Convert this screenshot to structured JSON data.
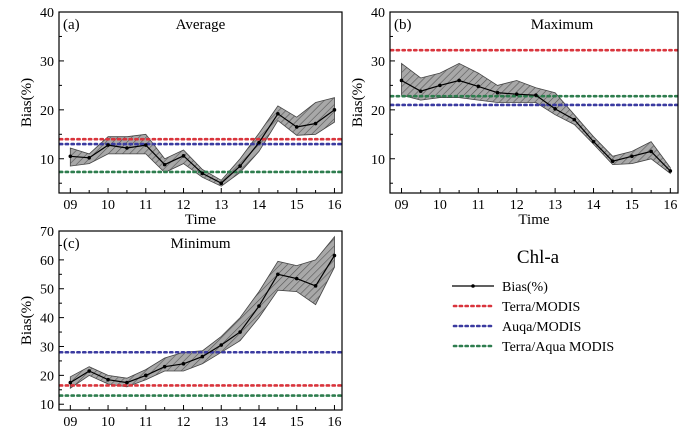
{
  "legend": {
    "title": "Chl-a",
    "entries": [
      {
        "key": "bias",
        "label": "Bias(%)",
        "color": "#000000",
        "style": "line-marker"
      },
      {
        "key": "terra",
        "label": "Terra/MODIS",
        "color": "#d9343c",
        "style": "dotted"
      },
      {
        "key": "aqua",
        "label": "Auqa/MODIS",
        "color": "#3a3aa0",
        "style": "dotted"
      },
      {
        "key": "terra_aqua",
        "label": "Terra/Aqua MODIS",
        "color": "#2e7d4e",
        "style": "dotted"
      }
    ]
  },
  "chart_data": [
    {
      "type": "line",
      "panel_label": "(a)",
      "title": "Average",
      "xlabel": "Time",
      "ylabel": "Bias(%)",
      "x_tick_labels": [
        "09",
        "10",
        "11",
        "12",
        "13",
        "14",
        "15",
        "16"
      ],
      "x_ticks": [
        9,
        10,
        11,
        12,
        13,
        14,
        15,
        16
      ],
      "y_ticks": [
        10,
        20,
        30,
        40
      ],
      "xlim": [
        8.7,
        16.2
      ],
      "ylim": [
        3,
        40
      ],
      "series": [
        {
          "key": "bias",
          "x": [
            9,
            9.5,
            10,
            10.5,
            11,
            11.5,
            12,
            12.5,
            13,
            13.5,
            14,
            14.5,
            15,
            15.5,
            16
          ],
          "y": [
            10.5,
            10.2,
            12.8,
            12.2,
            12.8,
            8.8,
            10.6,
            7.0,
            5.0,
            8.5,
            13.3,
            19.2,
            16.5,
            17.2,
            20.0
          ],
          "upper": [
            12.2,
            11.0,
            14.5,
            14.5,
            15.0,
            10.0,
            11.8,
            7.8,
            5.6,
            10.0,
            15.2,
            20.8,
            18.5,
            21.5,
            22.5
          ],
          "lower": [
            8.5,
            9.0,
            11.0,
            11.0,
            11.0,
            7.2,
            9.0,
            6.2,
            4.4,
            7.2,
            11.5,
            17.8,
            14.8,
            15.0,
            17.5
          ]
        },
        {
          "key": "terra",
          "value": 14.0
        },
        {
          "key": "aqua",
          "value": 13.0
        },
        {
          "key": "terra_aqua",
          "value": 7.3
        }
      ]
    },
    {
      "type": "line",
      "panel_label": "(b)",
      "title": "Maximum",
      "xlabel": "Time",
      "ylabel": "Bias(%)",
      "x_tick_labels": [
        "09",
        "10",
        "11",
        "12",
        "13",
        "14",
        "15",
        "16"
      ],
      "x_ticks": [
        9,
        10,
        11,
        12,
        13,
        14,
        15,
        16
      ],
      "y_ticks": [
        10,
        20,
        30,
        40
      ],
      "xlim": [
        8.7,
        16.2
      ],
      "ylim": [
        3,
        40
      ],
      "series": [
        {
          "key": "bias",
          "x": [
            9,
            9.5,
            10,
            10.5,
            11,
            11.5,
            12,
            12.5,
            13,
            13.5,
            14,
            14.5,
            15,
            15.5,
            16
          ],
          "y": [
            26.0,
            23.8,
            25.0,
            26.0,
            24.8,
            23.5,
            23.2,
            23.0,
            20.2,
            18.0,
            13.5,
            9.5,
            10.5,
            11.5,
            7.5
          ],
          "upper": [
            29.5,
            26.5,
            27.5,
            29.5,
            27.5,
            25.0,
            26.0,
            24.5,
            23.5,
            19.0,
            14.5,
            10.5,
            11.5,
            13.5,
            8.2
          ],
          "lower": [
            23.0,
            22.0,
            22.5,
            22.5,
            22.0,
            21.5,
            21.5,
            21.5,
            19.0,
            17.0,
            13.0,
            8.8,
            9.0,
            10.0,
            7.0
          ]
        },
        {
          "key": "terra",
          "value": 32.2
        },
        {
          "key": "aqua",
          "value": 21.0
        },
        {
          "key": "terra_aqua",
          "value": 22.8
        }
      ]
    },
    {
      "type": "line",
      "panel_label": "(c)",
      "title": "Minimum",
      "xlabel": "Time",
      "ylabel": "Bias(%)",
      "x_tick_labels": [
        "09",
        "10",
        "11",
        "12",
        "13",
        "14",
        "15",
        "16"
      ],
      "x_ticks": [
        9,
        10,
        11,
        12,
        13,
        14,
        15,
        16
      ],
      "y_ticks": [
        10,
        20,
        30,
        40,
        50,
        60,
        70
      ],
      "xlim": [
        8.7,
        16.2
      ],
      "ylim": [
        8,
        70
      ],
      "series": [
        {
          "key": "bias",
          "x": [
            9,
            9.5,
            10,
            10.5,
            11,
            11.5,
            12,
            12.5,
            13,
            13.5,
            14,
            14.5,
            15,
            15.5,
            16
          ],
          "y": [
            17.5,
            21.5,
            18.5,
            17.5,
            20.0,
            23.0,
            24.0,
            26.5,
            30.5,
            35.0,
            44.0,
            55.0,
            53.5,
            51.0,
            61.5
          ],
          "upper": [
            19.5,
            23.0,
            20.0,
            19.0,
            22.0,
            26.0,
            28.0,
            28.5,
            33.5,
            40.0,
            49.0,
            59.5,
            58.0,
            60.0,
            68.0
          ],
          "lower": [
            15.5,
            20.0,
            17.0,
            16.0,
            18.5,
            21.5,
            21.5,
            24.0,
            28.0,
            32.0,
            40.0,
            49.5,
            49.0,
            44.5,
            57.5
          ]
        },
        {
          "key": "terra",
          "value": 16.5
        },
        {
          "key": "aqua",
          "value": 28.0
        },
        {
          "key": "terra_aqua",
          "value": 13.0
        }
      ]
    }
  ]
}
